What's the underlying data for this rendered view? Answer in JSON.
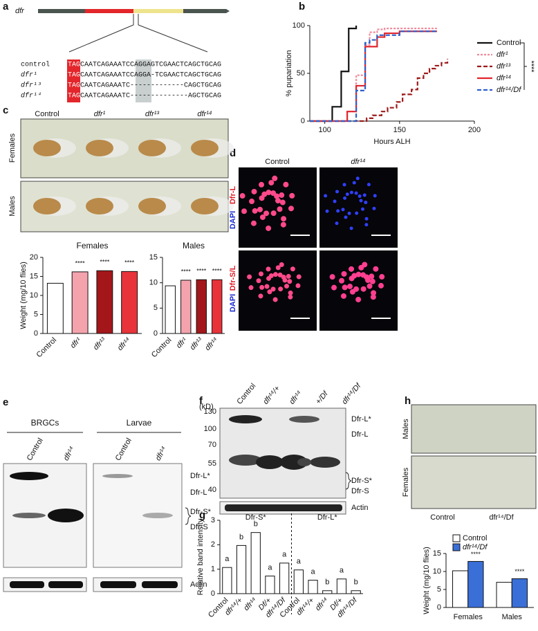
{
  "panel_labels": [
    "a",
    "b",
    "c",
    "d",
    "e",
    "f",
    "g",
    "h"
  ],
  "a": {
    "gene": "dfr",
    "rows": [
      {
        "label": "control",
        "prefix": "TAG",
        "sequence": "CAATCAGAAATCCAGGAGTCGAACTCAGCTGCAG"
      },
      {
        "label": "dfr¹",
        "prefix": "TAG",
        "sequence": "CAATCAGAAATCCAGGA-TCGAACTCAGCTGCAG"
      },
      {
        "label": "dfr¹³",
        "prefix": "TAG",
        "sequence": "CAATCAGAAATC-------------CAGCTGCAG"
      },
      {
        "label": "dfr¹⁴",
        "prefix": "TAG",
        "sequence": "CAATCAGAAATC--------------AGCTGCAG"
      }
    ]
  },
  "c": {
    "column_labels": [
      "Control",
      "dfr¹",
      "dfr¹³",
      "dfr¹⁴"
    ],
    "row_labels": [
      "Females",
      "Males"
    ]
  },
  "d": {
    "column_labels": [
      "Control",
      "dfr¹⁴"
    ],
    "row_labels": [
      [
        "DAPI",
        "Dfr-L"
      ],
      [
        "DAPI",
        "Dfr-S/L"
      ]
    ]
  },
  "e": {
    "groups": [
      "BRGCs",
      "Larvae"
    ],
    "lanes": [
      "Control",
      "dfr¹⁴",
      "Control",
      "dfr¹⁴"
    ],
    "bands": [
      "Dfr-L*",
      "Dfr-L",
      "Dfr-S*",
      "Dfr-S"
    ],
    "loading": "Actin"
  },
  "f": {
    "unit": "(kD)",
    "markers": [
      "130",
      "100",
      "70",
      "55",
      "40"
    ],
    "lanes": [
      "Control",
      "dfr¹⁴/+",
      "dfr¹⁴",
      "+/Df",
      "dfr¹⁴/Df"
    ],
    "bands": [
      "Dfr-L*",
      "Dfr-L",
      "Dfr-S*",
      "Dfr-S"
    ],
    "loading": "Actin"
  },
  "h": {
    "row_labels": [
      "Males",
      "Females"
    ],
    "column_labels": [
      "Control",
      "dfr¹⁴/Df"
    ]
  },
  "chart_data": [
    {
      "type": "line",
      "step": true,
      "xlabel": "Hours ALH",
      "ylabel": "% pupariation",
      "xlim": [
        90,
        200
      ],
      "xticks": [
        100,
        150,
        200
      ],
      "ylim": [
        0,
        100
      ],
      "yticks": [
        0,
        50,
        100
      ],
      "significance": "****",
      "series": [
        {
          "name": "Control",
          "color": "#111111",
          "dash": "solid",
          "x": [
            90,
            105,
            111,
            116,
            121
          ],
          "values": [
            0,
            15,
            52,
            97,
            100
          ]
        },
        {
          "name": "dfr¹",
          "color": "#f08a9c",
          "dash": "dotted",
          "x": [
            90,
            115,
            121,
            127,
            130,
            135,
            140,
            175
          ],
          "values": [
            0,
            10,
            48,
            80,
            93,
            96,
            97,
            97
          ]
        },
        {
          "name": "dfr¹³",
          "color": "#9c1a1a",
          "dash": "dashed",
          "x": [
            90,
            128,
            132,
            138,
            142,
            148,
            152,
            158,
            162,
            166,
            170,
            174,
            178,
            182
          ],
          "values": [
            0,
            3,
            6,
            10,
            14,
            20,
            28,
            33,
            45,
            50,
            55,
            58,
            61,
            65
          ]
        },
        {
          "name": "dfr¹⁴",
          "color": "#e0242c",
          "dash": "solid",
          "x": [
            90,
            115,
            121,
            127,
            135,
            140,
            150,
            175
          ],
          "values": [
            0,
            10,
            37,
            78,
            88,
            92,
            94,
            94
          ]
        },
        {
          "name": "dfr¹⁴/Df",
          "color": "#2f5fc9",
          "dash": "dashed",
          "x": [
            90,
            121,
            127,
            130,
            135,
            150,
            175
          ],
          "values": [
            0,
            32,
            82,
            85,
            90,
            94,
            94
          ]
        }
      ]
    },
    {
      "type": "bar",
      "title": "Females",
      "ylabel": "Weight (mg/10 flies)",
      "categories": [
        "Control",
        "dfr¹",
        "dfr¹³",
        "dfr¹⁴"
      ],
      "values": [
        13.2,
        16.2,
        16.5,
        16.3
      ],
      "colors": [
        "#ffffff",
        "#f4a3ad",
        "#a3171b",
        "#e8333a"
      ],
      "significance": [
        null,
        "****",
        "****",
        "****"
      ],
      "ylim": [
        0,
        20
      ],
      "yticks": [
        0,
        5,
        10,
        15,
        20
      ]
    },
    {
      "type": "bar",
      "title": "Males",
      "categories": [
        "Control",
        "dfr¹",
        "dfr¹³",
        "dfr¹⁴"
      ],
      "values": [
        9.4,
        10.5,
        10.6,
        10.6
      ],
      "colors": [
        "#ffffff",
        "#f4a3ad",
        "#a3171b",
        "#e8333a"
      ],
      "significance": [
        null,
        "****",
        "****",
        "****"
      ],
      "ylim": [
        0,
        15
      ],
      "yticks": [
        0,
        5,
        10,
        15
      ]
    },
    {
      "type": "bar",
      "ylabel": "Relative band intensity",
      "groups": [
        "Dfr-S*",
        "Dfr-L*"
      ],
      "categories": [
        "Control",
        "dfr¹⁴/+",
        "dfr¹⁴",
        "Df/+",
        "dfr¹⁴/Df",
        "Control",
        "dfr¹⁴/+",
        "dfr¹⁴",
        "Df/+",
        "dfr¹⁴/Df"
      ],
      "values": [
        1.07,
        1.97,
        2.5,
        0.72,
        1.25,
        0.97,
        0.55,
        0.12,
        0.6,
        0.12
      ],
      "letters": [
        "a",
        "b",
        "b",
        "a",
        "a",
        "a",
        "a",
        "b",
        "a",
        "b"
      ],
      "colors": [
        "#ffffff",
        "#ffffff",
        "#ffffff",
        "#ffffff",
        "#ffffff",
        "#ffffff",
        "#ffffff",
        "#ffffff",
        "#ffffff",
        "#ffffff"
      ],
      "ylim": [
        0,
        3
      ],
      "yticks": [
        0,
        1,
        2,
        3
      ]
    },
    {
      "type": "bar",
      "ylabel": "Weight (mg/10 flies)",
      "categories": [
        "Females",
        "Males"
      ],
      "series": [
        {
          "name": "Control",
          "color": "#ffffff",
          "values": [
            10.2,
            7.0
          ]
        },
        {
          "name": "dfr¹⁴/Df",
          "color": "#3a6fd8",
          "values": [
            12.8,
            8.0
          ],
          "significance": [
            "****",
            "****"
          ]
        }
      ],
      "ylim": [
        0,
        15
      ],
      "yticks": [
        0,
        5,
        10,
        15
      ]
    }
  ]
}
